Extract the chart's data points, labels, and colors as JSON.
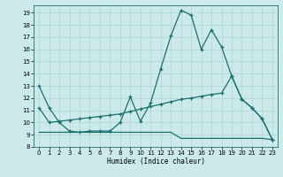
{
  "xlabel": "Humidex (Indice chaleur)",
  "bg_color": "#cceaea",
  "line_color": "#1a7070",
  "grid_color": "#aacece",
  "xlim": [
    -0.5,
    23.5
  ],
  "ylim": [
    8,
    19.6
  ],
  "yticks": [
    8,
    9,
    10,
    11,
    12,
    13,
    14,
    15,
    16,
    17,
    18,
    19
  ],
  "xticks": [
    0,
    1,
    2,
    3,
    4,
    5,
    6,
    7,
    8,
    9,
    10,
    11,
    12,
    13,
    14,
    15,
    16,
    17,
    18,
    19,
    20,
    21,
    22,
    23
  ],
  "series1_x": [
    0,
    1,
    2,
    3,
    4,
    5,
    6,
    7,
    8,
    9,
    10,
    11,
    12,
    13,
    14,
    15,
    16,
    17,
    18,
    19,
    20,
    21,
    22,
    23
  ],
  "series1_y": [
    13.0,
    11.2,
    10.0,
    9.3,
    9.2,
    9.3,
    9.3,
    9.3,
    10.0,
    12.1,
    10.1,
    11.6,
    14.4,
    17.1,
    19.2,
    18.8,
    16.0,
    17.6,
    16.2,
    13.8,
    11.9,
    11.2,
    10.3,
    8.6
  ],
  "series2_x": [
    0,
    1,
    2,
    3,
    4,
    5,
    6,
    7,
    8,
    9,
    10,
    11,
    12,
    13,
    14,
    15,
    16,
    17,
    18,
    19,
    20,
    21,
    22,
    23
  ],
  "series2_y": [
    11.2,
    10.0,
    10.1,
    10.2,
    10.3,
    10.4,
    10.5,
    10.6,
    10.7,
    10.9,
    11.1,
    11.3,
    11.5,
    11.7,
    11.9,
    12.0,
    12.15,
    12.3,
    12.4,
    13.8,
    11.9,
    11.2,
    10.3,
    8.6
  ],
  "series3_x": [
    0,
    1,
    2,
    3,
    4,
    5,
    6,
    7,
    8,
    9,
    10,
    11,
    12,
    13,
    14,
    15,
    16,
    17,
    18,
    19,
    20,
    21,
    22,
    23
  ],
  "series3_y": [
    9.2,
    9.2,
    9.2,
    9.2,
    9.2,
    9.2,
    9.2,
    9.2,
    9.2,
    9.2,
    9.2,
    9.2,
    9.2,
    9.2,
    8.7,
    8.7,
    8.7,
    8.7,
    8.7,
    8.7,
    8.7,
    8.7,
    8.7,
    8.6
  ]
}
